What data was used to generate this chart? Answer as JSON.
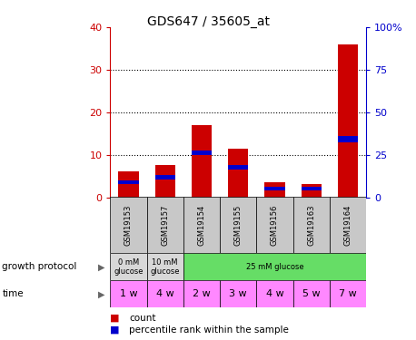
{
  "title": "GDS647 / 35605_at",
  "samples": [
    "GSM19153",
    "GSM19157",
    "GSM19154",
    "GSM19155",
    "GSM19156",
    "GSM19163",
    "GSM19164"
  ],
  "count_values": [
    6,
    7.5,
    17,
    11.5,
    3.5,
    3,
    36
  ],
  "blue_bottom": [
    3.0,
    4.2,
    10.0,
    6.5,
    1.5,
    1.5,
    13.0
  ],
  "blue_height_data": [
    1.0,
    1.0,
    1.0,
    1.0,
    1.0,
    1.0,
    1.5
  ],
  "left_ylim": [
    0,
    40
  ],
  "right_ylim": [
    0,
    100
  ],
  "left_yticks": [
    0,
    10,
    20,
    30,
    40
  ],
  "right_yticks": [
    0,
    25,
    50,
    75,
    100
  ],
  "right_yticklabels": [
    "0",
    "25",
    "50",
    "75",
    "100%"
  ],
  "bar_color": "#cc0000",
  "blue_color": "#0000cc",
  "growth_protocol_groups": [
    {
      "label": "0 mM\nglucose",
      "span": [
        0,
        1
      ],
      "color": "#d8d8d8"
    },
    {
      "label": "10 mM\nglucose",
      "span": [
        1,
        2
      ],
      "color": "#d8d8d8"
    },
    {
      "label": "25 mM glucose",
      "span": [
        2,
        7
      ],
      "color": "#66dd66"
    }
  ],
  "time_labels": [
    "1 w",
    "4 w",
    "2 w",
    "3 w",
    "4 w",
    "5 w",
    "7 w"
  ],
  "time_color": "#ff88ff",
  "sample_bg_color": "#c8c8c8",
  "dotted_yticks": [
    10,
    20,
    30
  ]
}
